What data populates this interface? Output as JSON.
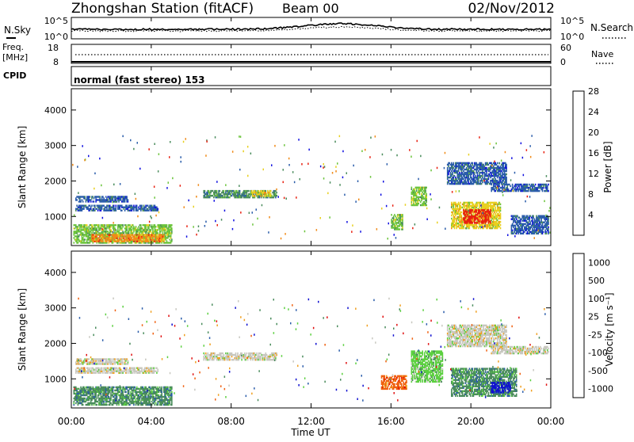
{
  "header": {
    "station": "Zhongshan Station (fitACF)",
    "beam": "Beam 00",
    "date": "02/Nov/2012"
  },
  "strip_labels": {
    "nsky": "N.Sky",
    "nsky_top": "10^5",
    "nsky_bottom": "10^0",
    "nsearch": "N.Search",
    "nsearch_top": "10^5",
    "nsearch_bottom": "10^0",
    "freq_a": "Freq.",
    "freq_b": "[MHz]",
    "freq_top": "18",
    "freq_bottom": "8",
    "nave": "Nave",
    "nave_top": "60",
    "nave_bottom": "0",
    "cpid": "CPID",
    "cpid_text": "normal (fast stereo) 153"
  },
  "chart_data": [
    {
      "type": "heatmap",
      "panel": "power",
      "ylabel": "Slant Range [km]",
      "y_ticks": [
        "1000",
        "2000",
        "3000",
        "4000"
      ],
      "ylim": [
        180,
        4600
      ],
      "colorbar_label": "Power [dB]",
      "colorbar_ticks": [
        "4",
        "8",
        "12",
        "16",
        "20",
        "24",
        "28"
      ],
      "colors": [
        "#1010e0",
        "#2a5caa",
        "#4a8c5c",
        "#6cc43c",
        "#e8d020",
        "#f08a18",
        "#e82010"
      ],
      "regions": [
        {
          "t0": 0.1,
          "t1": 5.0,
          "r0": 240,
          "r1": 780,
          "level": 3
        },
        {
          "t0": 1.0,
          "t1": 4.6,
          "r0": 280,
          "r1": 480,
          "level": 5
        },
        {
          "t0": 0.2,
          "t1": 4.3,
          "r0": 1150,
          "r1": 1320,
          "level": 1
        },
        {
          "t0": 0.2,
          "t1": 2.8,
          "r0": 1400,
          "r1": 1560,
          "level": 1
        },
        {
          "t0": 6.6,
          "t1": 10.3,
          "r0": 1520,
          "r1": 1720,
          "level": 2
        },
        {
          "t0": 9.0,
          "t1": 10.0,
          "r0": 1560,
          "r1": 1700,
          "level": 4
        },
        {
          "t0": 16.0,
          "t1": 16.6,
          "r0": 620,
          "r1": 1050,
          "level": 3
        },
        {
          "t0": 17.0,
          "t1": 17.8,
          "r0": 1300,
          "r1": 1800,
          "level": 3
        },
        {
          "t0": 19.0,
          "t1": 21.5,
          "r0": 650,
          "r1": 1400,
          "level": 4
        },
        {
          "t0": 19.6,
          "t1": 21.0,
          "r0": 800,
          "r1": 1200,
          "level": 6
        },
        {
          "t0": 18.8,
          "t1": 21.8,
          "r0": 1900,
          "r1": 2500,
          "level": 1
        },
        {
          "t0": 21.0,
          "t1": 23.9,
          "r0": 1700,
          "r1": 1900,
          "level": 1
        },
        {
          "t0": 22.0,
          "t1": 23.9,
          "r0": 500,
          "r1": 1000,
          "level": 1
        }
      ]
    },
    {
      "type": "heatmap",
      "panel": "velocity",
      "ylabel": "Slant Range [km]",
      "y_ticks": [
        "1000",
        "2000",
        "3000",
        "4000"
      ],
      "ylim": [
        180,
        4600
      ],
      "colorbar_label": "Velocity [m s⁻¹]",
      "colorbar_ticks": [
        "1000",
        "500",
        "100",
        "25",
        "-25",
        "-100",
        "-500",
        "-1000"
      ],
      "colors": [
        "#1010d0",
        "#2a5caa",
        "#4a8c5c",
        "#5cd040",
        "#c8c8c0",
        "#f0a020",
        "#f06010",
        "#e01010"
      ],
      "regions": [
        {
          "t0": 0.1,
          "t1": 5.0,
          "r0": 250,
          "r1": 780,
          "level": 2
        },
        {
          "t0": 0.2,
          "t1": 4.3,
          "r0": 1150,
          "r1": 1320,
          "level": 4
        },
        {
          "t0": 0.2,
          "t1": 2.8,
          "r0": 1400,
          "r1": 1560,
          "level": 4
        },
        {
          "t0": 6.6,
          "t1": 10.3,
          "r0": 1520,
          "r1": 1720,
          "level": 4
        },
        {
          "t0": 15.5,
          "t1": 16.8,
          "r0": 700,
          "r1": 1100,
          "level": 6
        },
        {
          "t0": 17.0,
          "t1": 18.6,
          "r0": 900,
          "r1": 1800,
          "level": 3
        },
        {
          "t0": 19.0,
          "t1": 22.3,
          "r0": 500,
          "r1": 1300,
          "level": 2
        },
        {
          "t0": 21.0,
          "t1": 22.0,
          "r0": 600,
          "r1": 900,
          "level": 0
        },
        {
          "t0": 18.8,
          "t1": 21.8,
          "r0": 1900,
          "r1": 2500,
          "level": 4
        },
        {
          "t0": 21.0,
          "t1": 23.9,
          "r0": 1700,
          "r1": 1900,
          "level": 4
        }
      ]
    }
  ],
  "time_axis": {
    "label": "Time UT",
    "xlim": [
      0,
      24
    ],
    "ticks": [
      "00:00",
      "04:00",
      "08:00",
      "12:00",
      "16:00",
      "20:00",
      "00:00"
    ]
  }
}
